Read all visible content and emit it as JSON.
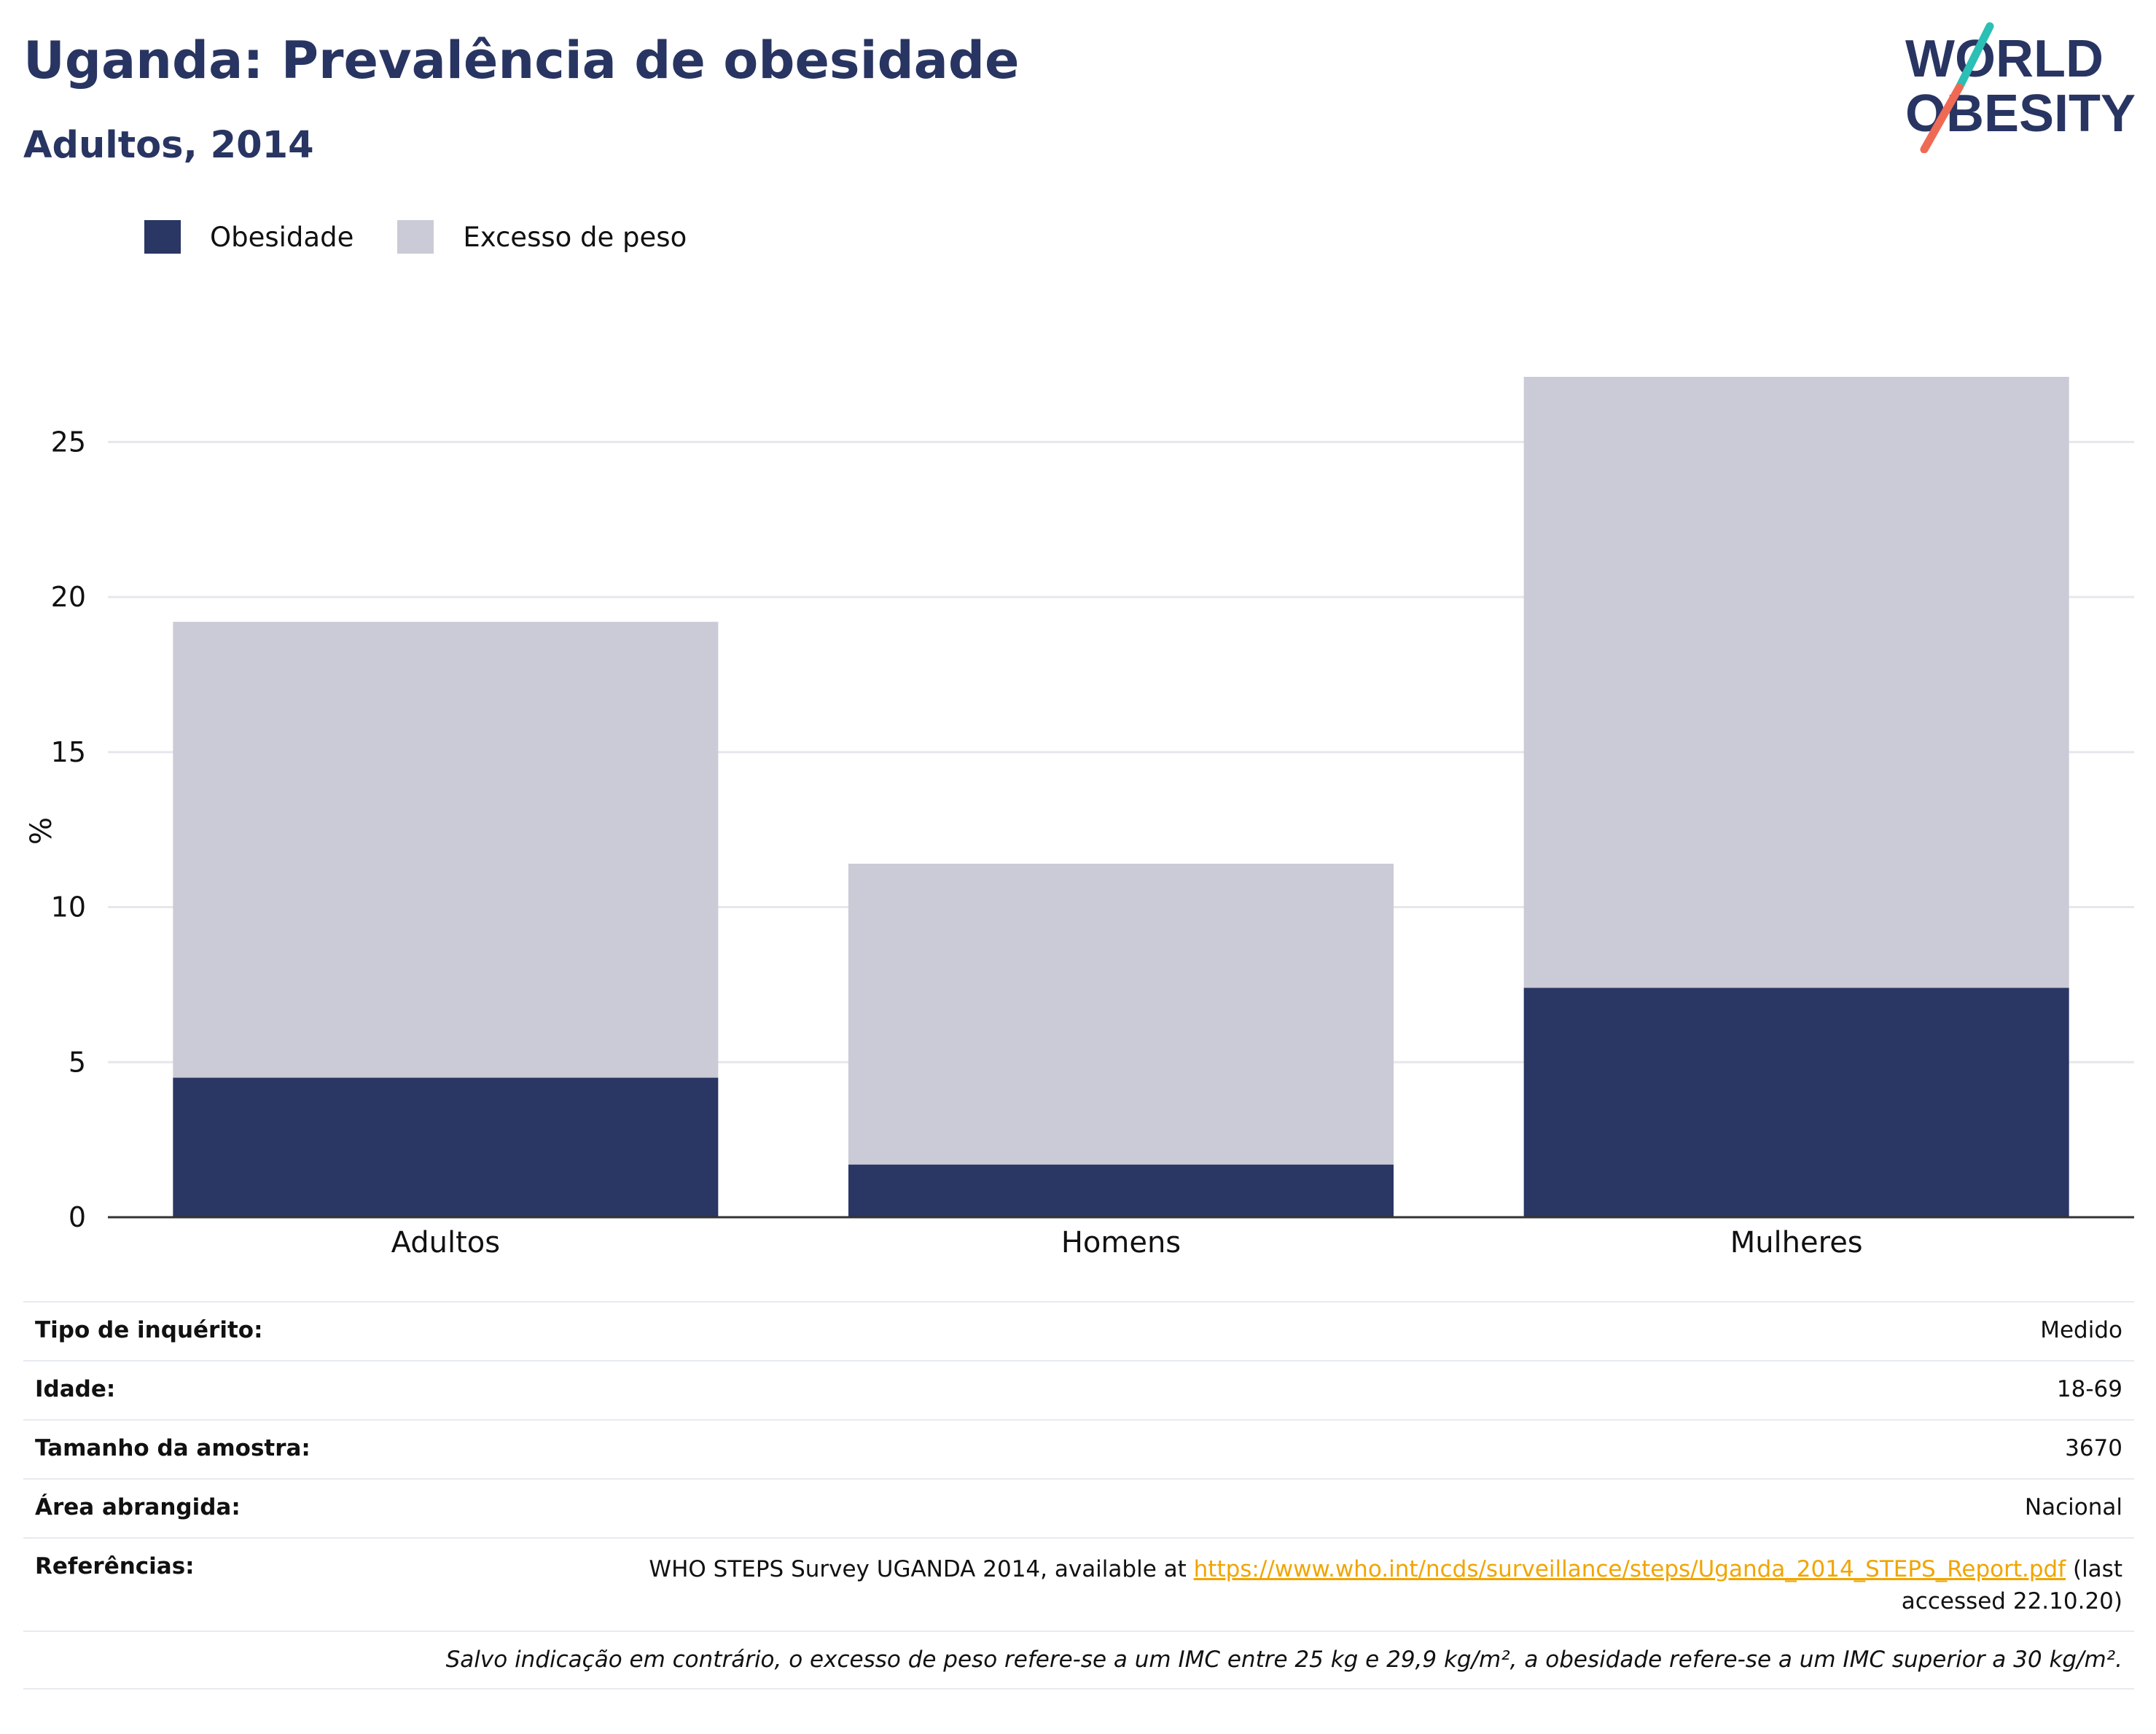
{
  "header": {
    "title": "Uganda: Prevalência de obesidade",
    "subtitle": "Adultos, 2014"
  },
  "logo": {
    "line1": "WORLD",
    "line2": "OBESITY",
    "colors": {
      "text": "#283562",
      "slash_top": "#2bbfb5",
      "slash_bottom": "#ef6a55"
    }
  },
  "colors": {
    "obesity": "#2a3663",
    "overweight": "#cacbd6",
    "grid": "#e6e6ec",
    "axis": "#333333",
    "title": "#283562"
  },
  "chart_data": {
    "type": "bar",
    "stacked": true,
    "categories": [
      "Adultos",
      "Homens",
      "Mulheres"
    ],
    "series": [
      {
        "name": "Obesidade",
        "values": [
          4.5,
          1.7,
          7.4
        ]
      },
      {
        "name": "Excesso de peso",
        "values": [
          14.7,
          9.7,
          19.7
        ]
      }
    ],
    "ylabel": "%",
    "ylim": [
      0,
      27.5
    ],
    "yticks": [
      0,
      5,
      10,
      15,
      20,
      25
    ],
    "grid": true,
    "legend": "top-left"
  },
  "info": {
    "rows": [
      {
        "label": "Tipo de inquérito:",
        "value": "Medido"
      },
      {
        "label": "Idade:",
        "value": "18-69"
      },
      {
        "label": "Tamanho da amostra:",
        "value": "3670"
      },
      {
        "label": "Área abrangida:",
        "value": "Nacional"
      }
    ],
    "references": {
      "label": "Referências:",
      "prefix": "WHO STEPS Survey UGANDA 2014, available at ",
      "link": "https://www.who.int/ncds/surveillance/steps/Uganda_2014_STEPS_Report.pdf",
      "suffix": " (last accessed 22.10.20)"
    },
    "note": "Salvo indicação em contrário, o excesso de peso refere-se a um IMC entre 25 kg e 29,9 kg/m², a obesidade refere-se a um IMC superior a 30 kg/m²."
  }
}
